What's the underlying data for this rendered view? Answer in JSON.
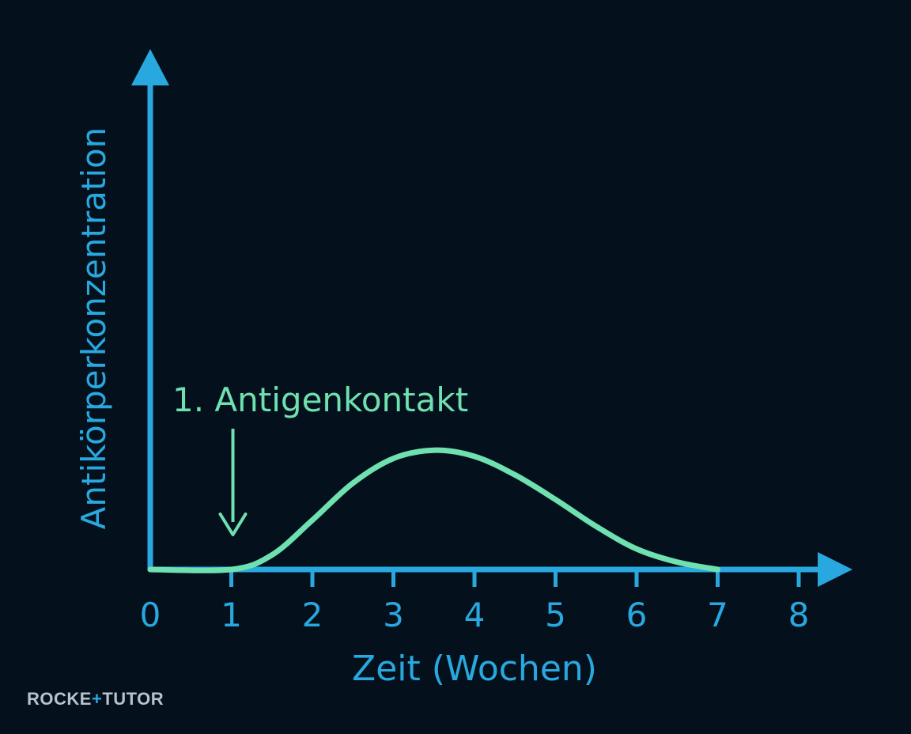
{
  "chart_data": {
    "type": "line",
    "title": "",
    "xlabel": "Zeit (Wochen)",
    "ylabel": "Antikörperkonzentration",
    "xlim": [
      0,
      8
    ],
    "ylim": [
      0,
      6
    ],
    "x_ticks": [
      "0",
      "1",
      "2",
      "3",
      "4",
      "5",
      "6",
      "7",
      "8"
    ],
    "grid": false,
    "legend": "none",
    "series": [
      {
        "x": [
          0,
          1,
          1.5,
          2,
          2.5,
          3,
          3.5,
          4,
          4.5,
          5,
          5.5,
          6,
          6.5,
          7
        ],
        "y": [
          0,
          0,
          0.35,
          1.2,
          2.1,
          2.7,
          2.9,
          2.75,
          2.3,
          1.7,
          1.05,
          0.5,
          0.18,
          0
        ],
        "color": "#6fe0b0"
      }
    ],
    "annotations": [
      {
        "text": "1. Antigenkontakt",
        "x": 1,
        "arrow": "down"
      }
    ],
    "axis_color": "#29a8e0",
    "background": "#04111d"
  },
  "branding": {
    "logo_text": "ROCKETUTOR"
  }
}
